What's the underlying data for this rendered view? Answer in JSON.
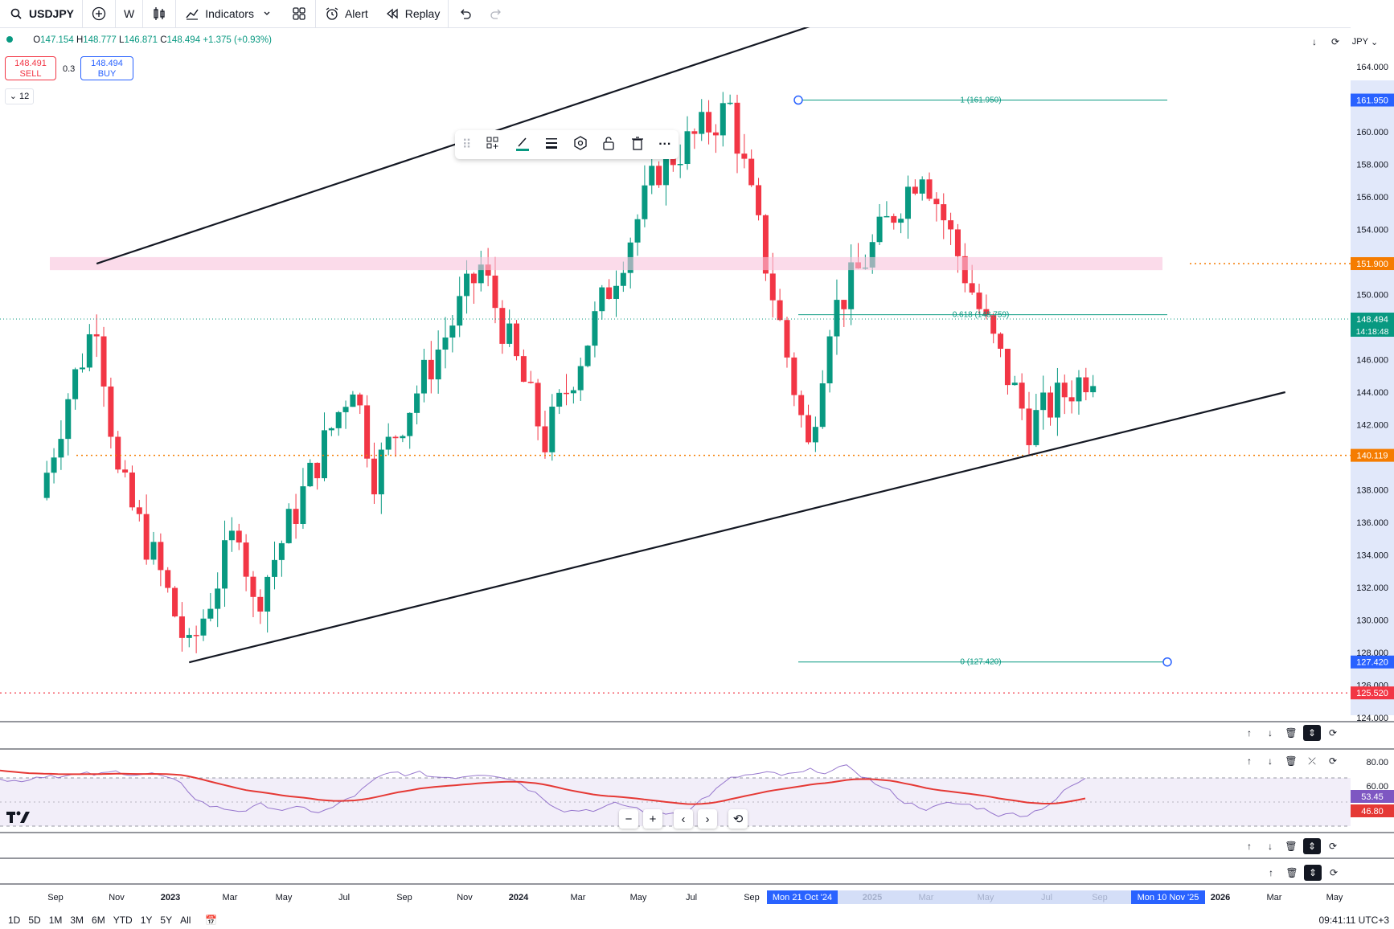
{
  "toolbar": {
    "symbol": "USDJPY",
    "interval": "W",
    "indicators_label": "Indicators",
    "alert_label": "Alert",
    "replay_label": "Replay"
  },
  "legend": {
    "open_label": "O",
    "open": "147.154",
    "high_label": "H",
    "high": "148.777",
    "low_label": "L",
    "low": "146.871",
    "close_label": "C",
    "close": "148.494",
    "change": "+1.375 (+0.93%)"
  },
  "trade": {
    "sell_price": "148.491",
    "sell_label": "SELL",
    "spread": "0.3",
    "buy_price": "148.494",
    "buy_label": "BUY",
    "collapse_count": "12"
  },
  "price_axis": {
    "currency": "JPY",
    "ticks": [
      "164.000",
      "160.000",
      "158.000",
      "156.000",
      "154.000",
      "150.000",
      "146.000",
      "144.000",
      "142.000",
      "138.000",
      "136.000",
      "134.000",
      "132.000",
      "130.000",
      "128.000",
      "126.000",
      "124.000"
    ]
  },
  "price_tags": {
    "fib_top": "161.950",
    "resistance": "151.900",
    "current": "148.494",
    "countdown": "14:18:48",
    "support": "140.119",
    "fib_bottom": "127.420",
    "low_line": "125.520"
  },
  "fib_labels": {
    "top": "1 (161.950)",
    "mid": "0.618 (148.759)",
    "bottom": "0 (127.420)"
  },
  "rsi": {
    "ticks": [
      "80.00",
      "60.00"
    ],
    "rsi_value": "53.45",
    "ma_value": "46.80"
  },
  "time_axis": {
    "labels": [
      "Sep",
      "Nov",
      "2023",
      "Mar",
      "May",
      "Jul",
      "Sep",
      "Nov",
      "2024",
      "Mar",
      "May",
      "Jul",
      "Sep",
      "2025",
      "Mar",
      "May",
      "Jul",
      "Sep",
      "2026",
      "Mar",
      "May"
    ],
    "highlight_1": "Mon 21 Oct '24",
    "highlight_2": "Mon 10 Nov '25"
  },
  "ranges": [
    "1D",
    "5D",
    "1M",
    "3M",
    "6M",
    "YTD",
    "1Y",
    "5Y",
    "All"
  ],
  "clock": "09:41:11 UTC+3",
  "colors": {
    "up": "#089981",
    "down": "#f23645",
    "blue": "#2962ff",
    "orange": "#f57c00",
    "rsi": "#7e57c2",
    "rsi_ma": "#e53935"
  },
  "chart_data": {
    "type": "candlestick",
    "interval": "W",
    "ylim": [
      124,
      165
    ],
    "dates_range": [
      "2022-08",
      "2025-08"
    ],
    "close_path": [
      {
        "date": "2022-08-22",
        "value": 137.5
      },
      {
        "date": "2022-09-19",
        "value": 143.8
      },
      {
        "date": "2022-10-17",
        "value": 148.6
      },
      {
        "date": "2022-11-07",
        "value": 138.8
      },
      {
        "date": "2022-12-19",
        "value": 132.8
      },
      {
        "date": "2023-01-16",
        "value": 127.9
      },
      {
        "date": "2023-03-06",
        "value": 136.0
      },
      {
        "date": "2023-03-20",
        "value": 130.8
      },
      {
        "date": "2023-06-26",
        "value": 144.8
      },
      {
        "date": "2023-07-17",
        "value": 139.0
      },
      {
        "date": "2023-10-30",
        "value": 151.7
      },
      {
        "date": "2024-01-01",
        "value": 141.0
      },
      {
        "date": "2024-04-22",
        "value": 157.8
      },
      {
        "date": "2024-07-01",
        "value": 161.5
      },
      {
        "date": "2024-09-16",
        "value": 140.5
      },
      {
        "date": "2024-10-07",
        "value": 148.5
      },
      {
        "date": "2025-01-06",
        "value": 158.0
      },
      {
        "date": "2025-03-10",
        "value": 148.0
      },
      {
        "date": "2025-04-21",
        "value": 142.0
      },
      {
        "date": "2025-08-18",
        "value": 148.5
      }
    ],
    "channel_lines": [
      {
        "name": "upper",
        "from": {
          "date": "2022-10-17",
          "value": 151.9
        },
        "to": {
          "date": "2024-11-25",
          "value": 167.9
        }
      },
      {
        "name": "lower",
        "from": {
          "date": "2023-01-16",
          "value": 127.4
        },
        "to": {
          "date": "2025-12-29",
          "value": 144.0
        }
      }
    ],
    "horizontal_lines": [
      151.9,
      140.119,
      125.52
    ],
    "fib_levels": [
      161.95,
      148.759,
      127.42
    ],
    "rsi_last": 53.45,
    "rsi_ma_last": 46.8
  }
}
